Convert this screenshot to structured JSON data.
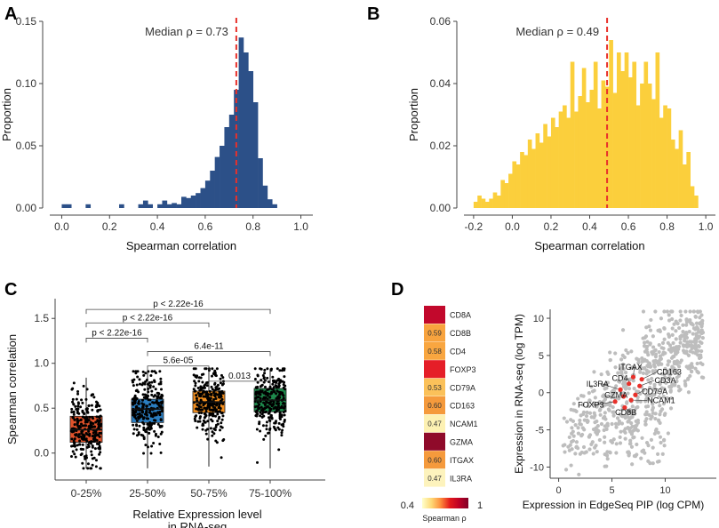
{
  "panels": {
    "a": {
      "letter": "A"
    },
    "b": {
      "letter": "B"
    },
    "c": {
      "letter": "C"
    },
    "d": {
      "letter": "D"
    }
  },
  "chart_data": [
    {
      "id": "A",
      "type": "bar",
      "subtype": "histogram",
      "xlabel": "Spearman correlation",
      "ylabel": "Proportion",
      "xlim": [
        -0.05,
        1.05
      ],
      "ylim": [
        0,
        0.15
      ],
      "xticks": [
        "0.0",
        "0.2",
        "0.4",
        "0.6",
        "0.8",
        "1.0"
      ],
      "yticks": [
        "0.00",
        "0.05",
        "0.10",
        "0.15"
      ],
      "bin_start": 0.0,
      "bin_width": 0.02,
      "values": [
        0.003,
        0.003,
        0,
        0,
        0,
        0.003,
        0,
        0,
        0,
        0,
        0,
        0,
        0.003,
        0,
        0,
        0,
        0.003,
        0.006,
        0.003,
        0,
        0.003,
        0.006,
        0.003,
        0.004,
        0.003,
        0.009,
        0.008,
        0.01,
        0.012,
        0.016,
        0.022,
        0.03,
        0.041,
        0.05,
        0.065,
        0.075,
        0.095,
        0.137,
        0.125,
        0.11,
        0.085,
        0.04,
        0.018,
        0.007,
        0.003,
        0,
        0,
        0,
        0,
        0
      ],
      "median": 0.73,
      "median_label": "Median ρ = 0.73",
      "color": "#2c5088",
      "median_color": "#e8302a"
    },
    {
      "id": "B",
      "type": "bar",
      "subtype": "histogram",
      "xlabel": "Spearman correlation",
      "ylabel": "Proportion",
      "xlim": [
        -0.25,
        1.05
      ],
      "ylim": [
        0,
        0.06
      ],
      "xticks": [
        "-0.2",
        "0.0",
        "0.2",
        "0.4",
        "0.6",
        "0.8",
        "1.0"
      ],
      "yticks": [
        "0.00",
        "0.02",
        "0.04",
        "0.06"
      ],
      "bin_start": -0.2,
      "bin_width": 0.02,
      "values": [
        0.002,
        0.004,
        0.003,
        0.002,
        0.003,
        0.005,
        0.004,
        0.009,
        0.008,
        0.011,
        0.015,
        0.014,
        0.018,
        0.017,
        0.022,
        0.019,
        0.024,
        0.021,
        0.027,
        0.023,
        0.029,
        0.026,
        0.031,
        0.033,
        0.029,
        0.047,
        0.031,
        0.036,
        0.045,
        0.034,
        0.038,
        0.047,
        0.032,
        0.041,
        0.039,
        0.054,
        0.037,
        0.05,
        0.044,
        0.05,
        0.042,
        0.047,
        0.033,
        0.04,
        0.047,
        0.04,
        0.035,
        0.05,
        0.029,
        0.033,
        0.032,
        0.022,
        0.019,
        0.025,
        0.014,
        0.018,
        0.007,
        0.004
      ],
      "median": 0.49,
      "median_label": "Median ρ = 0.49",
      "color": "#fbcf3c",
      "median_color": "#e8302a"
    },
    {
      "id": "C",
      "type": "box",
      "xlabel_line1": "Relative Expression level",
      "xlabel_line2": "in RNA-seq",
      "ylabel": "Spearman correlation",
      "ylim": [
        -0.3,
        1.72
      ],
      "yticks": [
        "0.0",
        "0.5",
        "1.0",
        "1.5"
      ],
      "categories": [
        "0-25%",
        "25-50%",
        "50-75%",
        "75-100%"
      ],
      "series": [
        {
          "name": "0-25%",
          "q1": 0.12,
          "median": 0.26,
          "q3": 0.41,
          "whisker_low": -0.17,
          "whisker_high": 0.84,
          "color": "#e1522a"
        },
        {
          "name": "25-50%",
          "q1": 0.34,
          "median": 0.49,
          "q3": 0.6,
          "whisker_low": -0.17,
          "whisker_high": 0.91,
          "color": "#2b7ec1"
        },
        {
          "name": "50-75%",
          "q1": 0.45,
          "median": 0.57,
          "q3": 0.69,
          "whisker_low": -0.15,
          "whisker_high": 0.94,
          "color": "#f28e1e"
        },
        {
          "name": "75-100%",
          "q1": 0.46,
          "median": 0.59,
          "q3": 0.72,
          "whisker_low": -0.17,
          "whisker_high": 0.94,
          "color": "#1e8a4c"
        }
      ],
      "comparisons": [
        {
          "from": 0,
          "to": 3,
          "y": 1.6,
          "label": "p < 2.22e-16"
        },
        {
          "from": 0,
          "to": 2,
          "y": 1.45,
          "label": "p < 2.22e-16"
        },
        {
          "from": 0,
          "to": 1,
          "y": 1.28,
          "label": "p < 2.22e-16"
        },
        {
          "from": 1,
          "to": 3,
          "y": 1.13,
          "label": "6.4e-11"
        },
        {
          "from": 1,
          "to": 2,
          "y": 0.97,
          "label": "5.6e-05"
        },
        {
          "from": 2,
          "to": 3,
          "y": 0.8,
          "label": "0.013"
        }
      ]
    },
    {
      "id": "D-heatmap",
      "type": "heatmap",
      "rows": [
        {
          "gene": "CD8A",
          "value": 0.93,
          "label": "",
          "color": "#c2082c"
        },
        {
          "gene": "CD8B",
          "value": 0.59,
          "label": "0.59",
          "color": "#f8a33e"
        },
        {
          "gene": "CD4",
          "value": 0.58,
          "label": "0.58",
          "color": "#f9a640"
        },
        {
          "gene": "FOXP3",
          "value": 0.85,
          "label": "",
          "color": "#e51e28"
        },
        {
          "gene": "CD79A",
          "value": 0.53,
          "label": "0.53",
          "color": "#fbc15a"
        },
        {
          "gene": "CD163",
          "value": 0.6,
          "label": "0.60",
          "color": "#f59a3c"
        },
        {
          "gene": "NCAM1",
          "value": 0.47,
          "label": "0.47",
          "color": "#fdf1b3"
        },
        {
          "gene": "GZMA",
          "value": 0.97,
          "label": "",
          "color": "#8f0a2a"
        },
        {
          "gene": "ITGAX",
          "value": 0.6,
          "label": "0.60",
          "color": "#f59a3c"
        },
        {
          "gene": "IL3RA",
          "value": 0.47,
          "label": "0.47",
          "color": "#fdf3bd"
        }
      ],
      "colorbar": {
        "min_label": "0.4",
        "max_label": "1",
        "title": "Spearman ρ",
        "colors": [
          "#ffffcc",
          "#fed976",
          "#fd8d3c",
          "#e31a1c",
          "#bd0026",
          "#800026"
        ]
      }
    },
    {
      "id": "D-scatter",
      "type": "scatter",
      "xlabel": "Expression in EdgeSeq PIP (log CPM)",
      "ylabel": "Expression in RNA-seq (log TPM)",
      "xlim": [
        -0.8,
        14.8
      ],
      "ylim": [
        -11.5,
        11.2
      ],
      "xticks": [
        "0",
        "5",
        "10"
      ],
      "yticks": [
        "-10",
        "-5",
        "0",
        "5",
        "10"
      ],
      "background_color": "#bdbdbd",
      "highlight_color": "#e8302a",
      "highlighted": [
        {
          "gene": "CD163",
          "x": 7.8,
          "y": 1.8
        },
        {
          "gene": "ITGAX",
          "x": 7.0,
          "y": 2.1
        },
        {
          "gene": "CD3A",
          "x": 7.6,
          "y": 0.9
        },
        {
          "gene": "CD4",
          "x": 6.6,
          "y": 1.2
        },
        {
          "gene": "IL3RA",
          "x": 5.8,
          "y": 0.4
        },
        {
          "gene": "CD79A",
          "x": 7.2,
          "y": -0.3
        },
        {
          "gene": "GZMA",
          "x": 6.1,
          "y": -0.5
        },
        {
          "gene": "NCAM1",
          "x": 6.8,
          "y": -1.0
        },
        {
          "gene": "FOXP3",
          "x": 5.3,
          "y": -1.2
        },
        {
          "gene": "CD8B",
          "x": 6.2,
          "y": -2.0
        }
      ]
    }
  ]
}
